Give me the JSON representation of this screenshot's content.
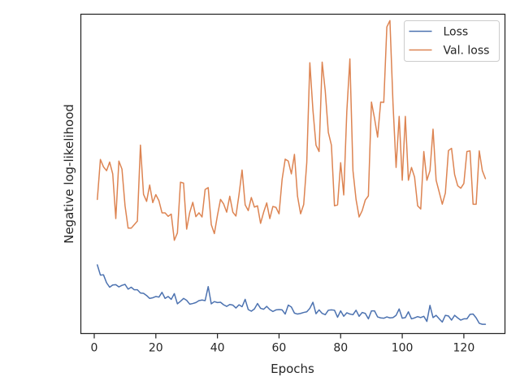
{
  "chart_data": {
    "type": "line",
    "title": "",
    "xlabel": "Epochs",
    "ylabel": "Negative log-likelihood",
    "xlim": [
      -4.35,
      133.35
    ],
    "ylim": [
      0.0,
      1.0
    ],
    "xticks": [
      0,
      20,
      40,
      60,
      80,
      100,
      120
    ],
    "yticks": [],
    "grid": false,
    "legend": "upper right",
    "series": [
      {
        "name": "Loss",
        "color": "#4c72b0",
        "x": [
          1,
          2,
          3,
          4,
          5,
          6,
          7,
          8,
          9,
          10,
          11,
          12,
          13,
          14,
          15,
          16,
          17,
          18,
          19,
          20,
          21,
          22,
          23,
          24,
          25,
          26,
          27,
          28,
          29,
          30,
          31,
          32,
          33,
          34,
          35,
          36,
          37,
          38,
          39,
          40,
          41,
          42,
          43,
          44,
          45,
          46,
          47,
          48,
          49,
          50,
          51,
          52,
          53,
          54,
          55,
          56,
          57,
          58,
          59,
          60,
          61,
          62,
          63,
          64,
          65,
          66,
          67,
          68,
          69,
          70,
          71,
          72,
          73,
          74,
          75,
          76,
          77,
          78,
          79,
          80,
          81,
          82,
          83,
          84,
          85,
          86,
          87,
          88,
          89,
          90,
          91,
          92,
          93,
          94,
          95,
          96,
          97,
          98,
          99,
          100,
          101,
          102,
          103,
          104,
          105,
          106,
          107,
          108,
          109,
          110,
          111,
          112,
          113,
          114,
          115,
          116,
          117,
          118,
          119,
          120,
          121,
          122,
          123,
          124,
          125,
          126,
          127
        ],
        "values": [
          0.215,
          0.183,
          0.184,
          0.159,
          0.145,
          0.152,
          0.153,
          0.146,
          0.151,
          0.154,
          0.139,
          0.145,
          0.137,
          0.137,
          0.127,
          0.126,
          0.119,
          0.11,
          0.112,
          0.116,
          0.114,
          0.129,
          0.11,
          0.116,
          0.107,
          0.125,
          0.093,
          0.101,
          0.11,
          0.104,
          0.092,
          0.094,
          0.097,
          0.103,
          0.105,
          0.103,
          0.147,
          0.093,
          0.1,
          0.097,
          0.098,
          0.09,
          0.085,
          0.091,
          0.089,
          0.08,
          0.09,
          0.084,
          0.107,
          0.075,
          0.07,
          0.077,
          0.094,
          0.079,
          0.076,
          0.085,
          0.075,
          0.069,
          0.074,
          0.075,
          0.074,
          0.061,
          0.089,
          0.083,
          0.064,
          0.061,
          0.063,
          0.066,
          0.068,
          0.079,
          0.098,
          0.062,
          0.074,
          0.063,
          0.059,
          0.073,
          0.074,
          0.073,
          0.051,
          0.071,
          0.054,
          0.065,
          0.061,
          0.059,
          0.073,
          0.054,
          0.066,
          0.063,
          0.046,
          0.071,
          0.071,
          0.052,
          0.049,
          0.048,
          0.052,
          0.049,
          0.05,
          0.057,
          0.077,
          0.048,
          0.05,
          0.068,
          0.046,
          0.049,
          0.053,
          0.05,
          0.054,
          0.038,
          0.088,
          0.05,
          0.057,
          0.046,
          0.036,
          0.057,
          0.055,
          0.042,
          0.057,
          0.049,
          0.042,
          0.046,
          0.046,
          0.06,
          0.061,
          0.049,
          0.032,
          0.029,
          0.029
        ]
      },
      {
        "name": "Val. loss",
        "color": "#dd8452",
        "x": [
          1,
          2,
          3,
          4,
          5,
          6,
          7,
          8,
          9,
          10,
          11,
          12,
          13,
          14,
          15,
          16,
          17,
          18,
          19,
          20,
          21,
          22,
          23,
          24,
          25,
          26,
          27,
          28,
          29,
          30,
          31,
          32,
          33,
          34,
          35,
          36,
          37,
          38,
          39,
          40,
          41,
          42,
          43,
          44,
          45,
          46,
          47,
          48,
          49,
          50,
          51,
          52,
          53,
          54,
          55,
          56,
          57,
          58,
          59,
          60,
          61,
          62,
          63,
          64,
          65,
          66,
          67,
          68,
          69,
          70,
          71,
          72,
          73,
          74,
          75,
          76,
          77,
          78,
          79,
          80,
          81,
          82,
          83,
          84,
          85,
          86,
          87,
          88,
          89,
          90,
          91,
          92,
          93,
          94,
          95,
          96,
          97,
          98,
          99,
          100,
          101,
          102,
          103,
          104,
          105,
          106,
          107,
          108,
          109,
          110,
          111,
          112,
          113,
          114,
          115,
          116,
          117,
          118,
          119,
          120,
          121,
          122,
          123,
          124,
          125,
          126,
          127
        ],
        "values": [
          0.42,
          0.545,
          0.522,
          0.51,
          0.537,
          0.5,
          0.36,
          0.54,
          0.515,
          0.4,
          0.33,
          0.33,
          0.341,
          0.352,
          0.59,
          0.436,
          0.414,
          0.465,
          0.41,
          0.435,
          0.416,
          0.378,
          0.378,
          0.367,
          0.374,
          0.292,
          0.315,
          0.474,
          0.471,
          0.327,
          0.379,
          0.411,
          0.366,
          0.378,
          0.365,
          0.451,
          0.457,
          0.341,
          0.313,
          0.37,
          0.42,
          0.406,
          0.38,
          0.43,
          0.38,
          0.368,
          0.435,
          0.512,
          0.403,
          0.385,
          0.426,
          0.396,
          0.4,
          0.345,
          0.38,
          0.409,
          0.36,
          0.398,
          0.395,
          0.375,
          0.483,
          0.546,
          0.54,
          0.5,
          0.561,
          0.43,
          0.375,
          0.404,
          0.535,
          0.848,
          0.7,
          0.59,
          0.57,
          0.85,
          0.76,
          0.63,
          0.59,
          0.4,
          0.403,
          0.535,
          0.434,
          0.695,
          0.86,
          0.51,
          0.42,
          0.365,
          0.385,
          0.418,
          0.431,
          0.725,
          0.674,
          0.615,
          0.725,
          0.724,
          0.96,
          0.98,
          0.72,
          0.52,
          0.68,
          0.48,
          0.68,
          0.48,
          0.52,
          0.49,
          0.4,
          0.39,
          0.57,
          0.48,
          0.51,
          0.64,
          0.48,
          0.443,
          0.405,
          0.44,
          0.573,
          0.58,
          0.498,
          0.463,
          0.455,
          0.47,
          0.57,
          0.572,
          0.405,
          0.405,
          0.572,
          0.51,
          0.485
        ]
      }
    ]
  }
}
